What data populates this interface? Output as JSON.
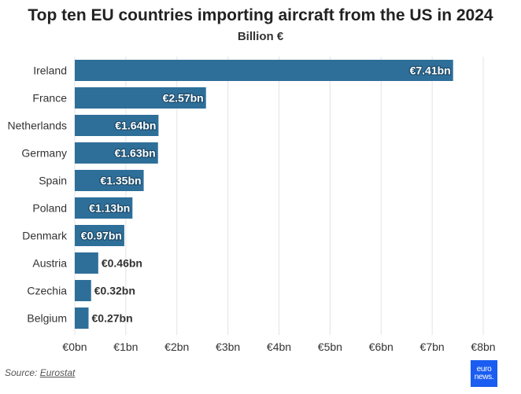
{
  "chart_data": {
    "type": "bar",
    "orientation": "horizontal",
    "title": "Top ten EU countries importing aircraft from the US in 2024",
    "subtitle": "Billion €",
    "categories": [
      "Ireland",
      "France",
      "Netherlands",
      "Germany",
      "Spain",
      "Poland",
      "Denmark",
      "Austria",
      "Czechia",
      "Belgium"
    ],
    "values": [
      7.41,
      2.57,
      1.64,
      1.63,
      1.35,
      1.13,
      0.97,
      0.46,
      0.32,
      0.27
    ],
    "data_labels": [
      "€7.41bn",
      "€2.57bn",
      "€1.64bn",
      "€1.63bn",
      "€1.35bn",
      "€1.13bn",
      "€0.97bn",
      "€0.46bn",
      "€0.32bn",
      "€0.27bn"
    ],
    "x_ticks": [
      0,
      1,
      2,
      3,
      4,
      5,
      6,
      7,
      8
    ],
    "x_tick_labels": [
      "€0bn",
      "€1bn",
      "€2bn",
      "€3bn",
      "€4bn",
      "€5bn",
      "€6bn",
      "€7bn",
      "€8bn"
    ],
    "xlim": [
      0,
      8
    ],
    "grid": "vertical",
    "legend": "none",
    "bar_color": "#2e6f9a"
  },
  "footer": {
    "source_prefix": "Source: ",
    "source_name": "Eurostat",
    "logo_line1": "euro",
    "logo_line2": "news."
  },
  "colors": {
    "logo_bg": "#1a5df0"
  }
}
